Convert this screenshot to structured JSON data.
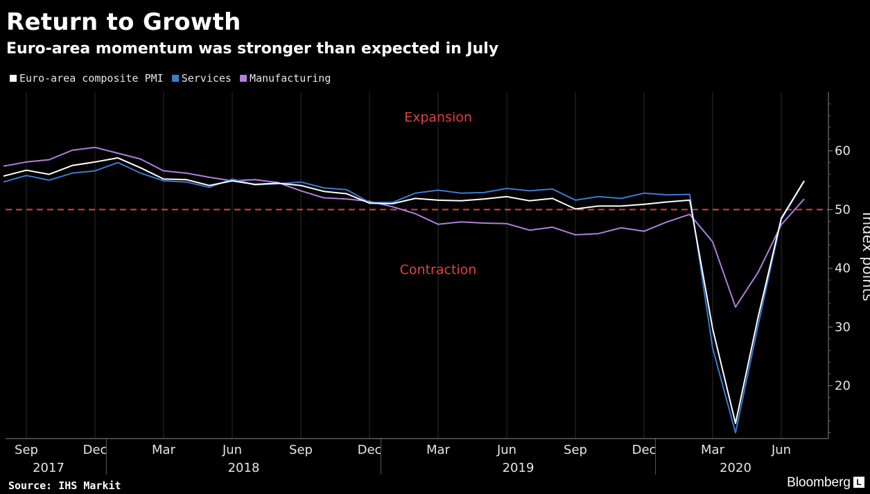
{
  "header": {
    "title": "Return to Growth",
    "subtitle": "Euro-area momentum was stronger than expected in July"
  },
  "legend": [
    {
      "label": "Euro-area composite PMI",
      "color": "#ffffff"
    },
    {
      "label": "Services",
      "color": "#3a7bd5"
    },
    {
      "label": "Manufacturing",
      "color": "#b07fe0"
    }
  ],
  "footer": {
    "source": "Source: IHS Markit",
    "brand": "Bloomberg",
    "brand_mark": "L"
  },
  "chart_data": {
    "type": "line",
    "title": "Return to Growth",
    "subtitle": "Euro-area momentum was stronger than expected in July",
    "ylabel": "Index points",
    "ylim": [
      11,
      70
    ],
    "yticks": [
      20,
      30,
      40,
      50,
      60
    ],
    "reference_line": {
      "value": 50,
      "color": "#e0423f",
      "style": "dashed"
    },
    "annotations": [
      {
        "text": "Expansion",
        "x": "2019-03",
        "y": 65
      },
      {
        "text": "Contraction",
        "x": "2019-03",
        "y": 39
      }
    ],
    "x_tick_labels": [
      "Sep",
      "Dec",
      "Mar",
      "Jun",
      "Sep",
      "Dec",
      "Mar",
      "Jun",
      "Sep",
      "Dec",
      "Mar",
      "Jun"
    ],
    "x_year_labels": [
      "2017",
      "2018",
      "2019",
      "2020"
    ],
    "x": [
      "2017-08",
      "2017-09",
      "2017-10",
      "2017-11",
      "2017-12",
      "2018-01",
      "2018-02",
      "2018-03",
      "2018-04",
      "2018-05",
      "2018-06",
      "2018-07",
      "2018-08",
      "2018-09",
      "2018-10",
      "2018-11",
      "2018-12",
      "2019-01",
      "2019-02",
      "2019-03",
      "2019-04",
      "2019-05",
      "2019-06",
      "2019-07",
      "2019-08",
      "2019-09",
      "2019-10",
      "2019-11",
      "2019-12",
      "2020-01",
      "2020-02",
      "2020-03",
      "2020-04",
      "2020-05",
      "2020-06",
      "2020-07"
    ],
    "series": [
      {
        "name": "Euro-area composite PMI",
        "color": "#ffffff",
        "values": [
          55.7,
          56.7,
          56.0,
          57.5,
          58.1,
          58.8,
          57.1,
          55.2,
          55.1,
          54.1,
          54.9,
          54.3,
          54.5,
          54.1,
          53.1,
          52.7,
          51.1,
          51.0,
          51.9,
          51.6,
          51.5,
          51.8,
          52.2,
          51.5,
          51.9,
          50.1,
          50.6,
          50.6,
          50.9,
          51.3,
          51.6,
          29.7,
          13.6,
          31.9,
          48.5,
          54.9
        ]
      },
      {
        "name": "Services",
        "color": "#3a7bd5",
        "values": [
          54.7,
          55.8,
          55.0,
          56.2,
          56.6,
          58.0,
          56.2,
          54.9,
          54.7,
          53.8,
          55.2,
          54.2,
          54.4,
          54.7,
          53.7,
          53.4,
          51.2,
          51.2,
          52.8,
          53.3,
          52.8,
          52.9,
          53.6,
          53.2,
          53.5,
          51.6,
          52.2,
          51.9,
          52.8,
          52.5,
          52.6,
          26.4,
          12.0,
          30.5,
          48.3,
          54.8
        ]
      },
      {
        "name": "Manufacturing",
        "color": "#b07fe0",
        "values": [
          57.4,
          58.1,
          58.5,
          60.1,
          60.6,
          59.6,
          58.6,
          56.6,
          56.2,
          55.5,
          54.9,
          55.1,
          54.6,
          53.2,
          52.0,
          51.8,
          51.4,
          50.5,
          49.3,
          47.5,
          47.9,
          47.7,
          47.6,
          46.5,
          47.0,
          45.7,
          45.9,
          46.9,
          46.3,
          47.9,
          49.2,
          44.5,
          33.4,
          39.4,
          47.4,
          51.8
        ]
      }
    ]
  }
}
